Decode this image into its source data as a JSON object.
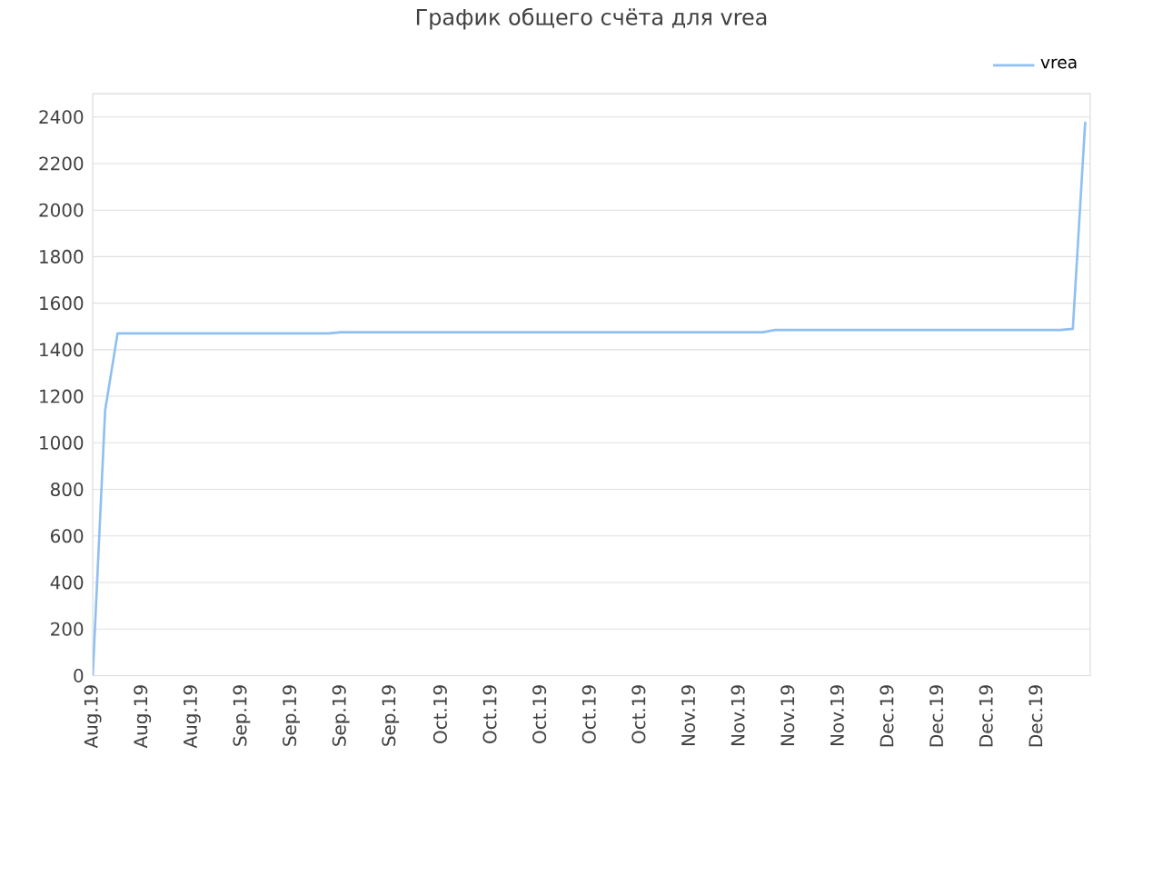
{
  "chart_data": {
    "type": "line",
    "title": "График общего счёта для vrea",
    "categories": [
      "Aug.19",
      null,
      null,
      null,
      "Aug.19",
      null,
      null,
      null,
      "Aug.19",
      null,
      null,
      null,
      "Sep.19",
      null,
      null,
      null,
      "Sep.19",
      null,
      null,
      null,
      "Sep.19",
      null,
      null,
      null,
      "Sep.19",
      null,
      null,
      null,
      "Oct.19",
      null,
      null,
      null,
      "Oct.19",
      null,
      null,
      null,
      "Oct.19",
      null,
      null,
      null,
      "Oct.19",
      null,
      null,
      null,
      "Oct.19",
      null,
      null,
      null,
      "Nov.19",
      null,
      null,
      null,
      "Nov.19",
      null,
      null,
      null,
      "Nov.19",
      null,
      null,
      null,
      "Nov.19",
      null,
      null,
      null,
      "Dec.19",
      null,
      null,
      null,
      "Dec.19",
      null,
      null,
      null,
      "Dec.19",
      null,
      null,
      null,
      "Dec.19",
      null,
      null,
      null,
      null
    ],
    "series": [
      {
        "name": "vrea",
        "color": "#90c0f0",
        "values": [
          0,
          1140,
          1470,
          1470,
          1470,
          1470,
          1470,
          1470,
          1470,
          1470,
          1470,
          1470,
          1470,
          1470,
          1470,
          1470,
          1470,
          1470,
          1470,
          1470,
          1475,
          1475,
          1475,
          1475,
          1475,
          1475,
          1475,
          1475,
          1475,
          1475,
          1475,
          1475,
          1475,
          1475,
          1475,
          1475,
          1475,
          1475,
          1475,
          1475,
          1475,
          1475,
          1475,
          1475,
          1475,
          1475,
          1475,
          1475,
          1475,
          1475,
          1475,
          1475,
          1475,
          1475,
          1475,
          1485,
          1485,
          1485,
          1485,
          1485,
          1485,
          1485,
          1485,
          1485,
          1485,
          1485,
          1485,
          1485,
          1485,
          1485,
          1485,
          1485,
          1485,
          1485,
          1485,
          1485,
          1485,
          1485,
          1485,
          1490,
          2380
        ]
      }
    ],
    "ylim": [
      0,
      2500
    ],
    "yticks": [
      0,
      200,
      400,
      600,
      800,
      1000,
      1200,
      1400,
      1600,
      1800,
      2000,
      2200,
      2400
    ],
    "grid": "y",
    "legend": "top right",
    "marker": "none",
    "line_style": "solid"
  }
}
